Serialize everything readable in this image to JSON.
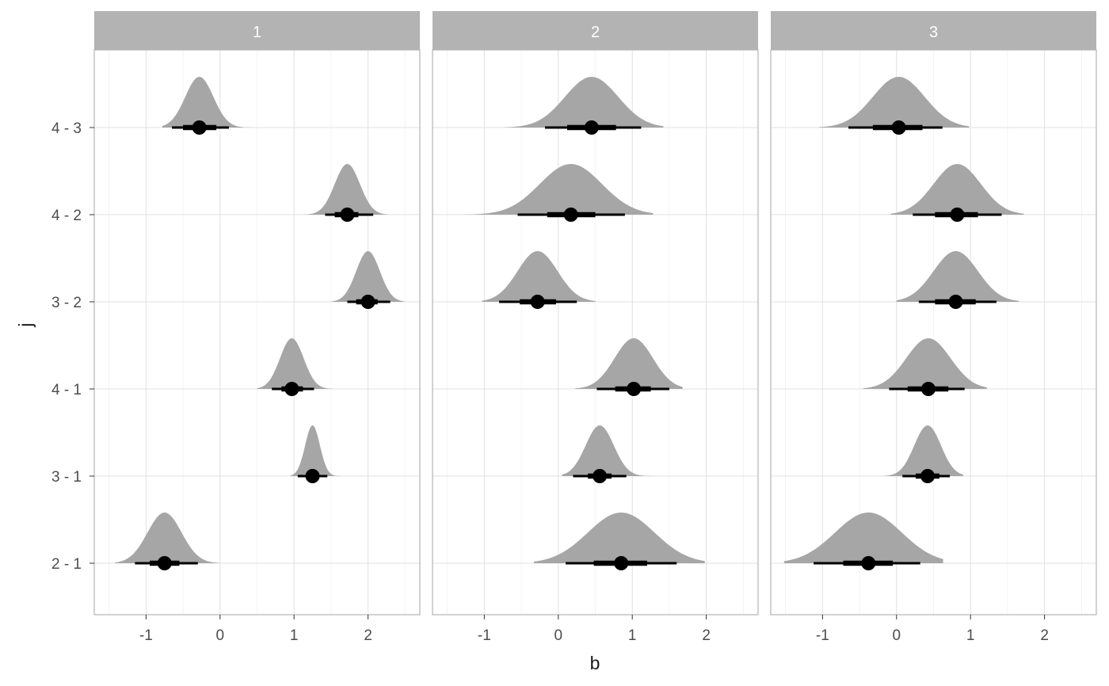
{
  "chart_data": {
    "type": "halfeye",
    "xlabel": "b",
    "ylabel": "j",
    "xlim": [
      -1.7,
      2.7
    ],
    "x_ticks": [
      "-1",
      "0",
      "1",
      "2"
    ],
    "x_tick_values": [
      -1,
      0,
      1,
      2
    ],
    "categories": [
      "4 - 3",
      "4 - 2",
      "3 - 2",
      "4 - 1",
      "3 - 1",
      "2 - 1"
    ],
    "grid": true,
    "colors": {
      "density": "#a6a6a6",
      "interval": "#000000",
      "strip": "#b3b3b3",
      "grid": "#e0e0e0"
    },
    "panels": [
      {
        "label": "1",
        "rows": [
          {
            "category": "4 - 3",
            "median": -0.28,
            "ci66": [
              -0.5,
              -0.05
            ],
            "ci95": [
              -0.65,
              0.12
            ],
            "range": [
              -0.78,
              0.48
            ],
            "sd": 0.19
          },
          {
            "category": "4 - 2",
            "median": 1.72,
            "ci66": [
              1.55,
              1.87
            ],
            "ci95": [
              1.42,
              2.07
            ],
            "range": [
              1.12,
              2.28
            ],
            "sd": 0.17
          },
          {
            "category": "3 - 2",
            "median": 2.0,
            "ci66": [
              1.84,
              2.13
            ],
            "ci95": [
              1.72,
              2.3
            ],
            "range": [
              1.5,
              2.5
            ],
            "sd": 0.16
          },
          {
            "category": "4 - 1",
            "median": 0.97,
            "ci66": [
              0.83,
              1.12
            ],
            "ci95": [
              0.7,
              1.27
            ],
            "range": [
              0.5,
              1.52
            ],
            "sd": 0.16
          },
          {
            "category": "3 - 1",
            "median": 1.25,
            "ci66": [
              1.16,
              1.33
            ],
            "ci95": [
              1.05,
              1.45
            ],
            "range": [
              0.95,
              1.65
            ],
            "sd": 0.1
          },
          {
            "category": "2 - 1",
            "median": -0.75,
            "ci66": [
              -0.95,
              -0.55
            ],
            "ci95": [
              -1.15,
              -0.3
            ],
            "range": [
              -1.42,
              0.0
            ],
            "sd": 0.23
          }
        ]
      },
      {
        "label": "2",
        "rows": [
          {
            "category": "4 - 3",
            "median": 0.45,
            "ci66": [
              0.12,
              0.78
            ],
            "ci95": [
              -0.18,
              1.12
            ],
            "range": [
              -0.73,
              1.42
            ],
            "sd": 0.36
          },
          {
            "category": "4 - 2",
            "median": 0.17,
            "ci66": [
              -0.15,
              0.5
            ],
            "ci95": [
              -0.55,
              0.9
            ],
            "range": [
              -1.27,
              1.28
            ],
            "sd": 0.42
          },
          {
            "category": "3 - 2",
            "median": -0.28,
            "ci66": [
              -0.52,
              -0.03
            ],
            "ci95": [
              -0.8,
              0.25
            ],
            "range": [
              -1.03,
              0.5
            ],
            "sd": 0.27
          },
          {
            "category": "4 - 1",
            "median": 1.02,
            "ci66": [
              0.77,
              1.25
            ],
            "ci95": [
              0.52,
              1.5
            ],
            "range": [
              0.22,
              1.68
            ],
            "sd": 0.26
          },
          {
            "category": "3 - 1",
            "median": 0.56,
            "ci66": [
              0.4,
              0.72
            ],
            "ci95": [
              0.2,
              0.92
            ],
            "range": [
              0.05,
              1.3
            ],
            "sd": 0.19
          },
          {
            "category": "2 - 1",
            "median": 0.85,
            "ci66": [
              0.48,
              1.2
            ],
            "ci95": [
              0.1,
              1.6
            ],
            "range": [
              -0.33,
              1.98
            ],
            "sd": 0.45
          }
        ]
      },
      {
        "label": "3",
        "rows": [
          {
            "category": "4 - 3",
            "median": 0.03,
            "ci66": [
              -0.32,
              0.35
            ],
            "ci95": [
              -0.65,
              0.62
            ],
            "range": [
              -1.05,
              0.98
            ],
            "sd": 0.35
          },
          {
            "category": "4 - 2",
            "median": 0.82,
            "ci66": [
              0.52,
              1.1
            ],
            "ci95": [
              0.22,
              1.42
            ],
            "range": [
              -0.08,
              1.72
            ],
            "sd": 0.32
          },
          {
            "category": "3 - 2",
            "median": 0.8,
            "ci66": [
              0.52,
              1.07
            ],
            "ci95": [
              0.3,
              1.35
            ],
            "range": [
              0.0,
              1.65
            ],
            "sd": 0.3
          },
          {
            "category": "4 - 1",
            "median": 0.43,
            "ci66": [
              0.15,
              0.7
            ],
            "ci95": [
              -0.1,
              0.92
            ],
            "range": [
              -0.45,
              1.22
            ],
            "sd": 0.3
          },
          {
            "category": "3 - 1",
            "median": 0.42,
            "ci66": [
              0.26,
              0.58
            ],
            "ci95": [
              0.08,
              0.72
            ],
            "range": [
              -0.18,
              0.9
            ],
            "sd": 0.18
          },
          {
            "category": "2 - 1",
            "median": -0.38,
            "ci66": [
              -0.72,
              -0.05
            ],
            "ci95": [
              -1.12,
              0.32
            ],
            "range": [
              -1.52,
              0.63
            ],
            "sd": 0.45
          }
        ]
      }
    ]
  }
}
